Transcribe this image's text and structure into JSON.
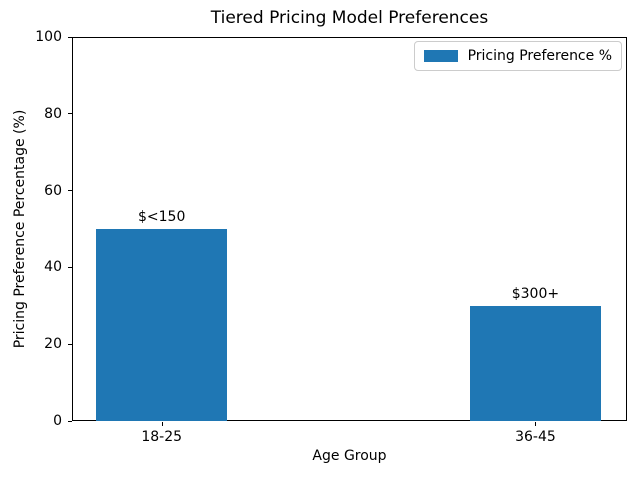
{
  "chart_data": {
    "type": "bar",
    "title": "Tiered Pricing Model Preferences",
    "xlabel": "Age Group",
    "ylabel": "Pricing Preference Percentage (%)",
    "categories": [
      "18-25",
      "36-45"
    ],
    "series": [
      {
        "name": "Pricing Preference %",
        "values": [
          50,
          30
        ]
      }
    ],
    "bar_labels": [
      "$<150",
      "$300+"
    ],
    "ylim": [
      0,
      100
    ],
    "yticks": [
      0,
      20,
      40,
      60,
      80,
      100
    ],
    "x_positions": [
      0,
      1
    ],
    "xlim": [
      -0.24,
      1.245
    ],
    "bar_width_units": 0.35,
    "bar_color": "#1f77b4",
    "grid": false,
    "legend": {
      "label": "Pricing Preference %",
      "position": "upper right"
    }
  }
}
